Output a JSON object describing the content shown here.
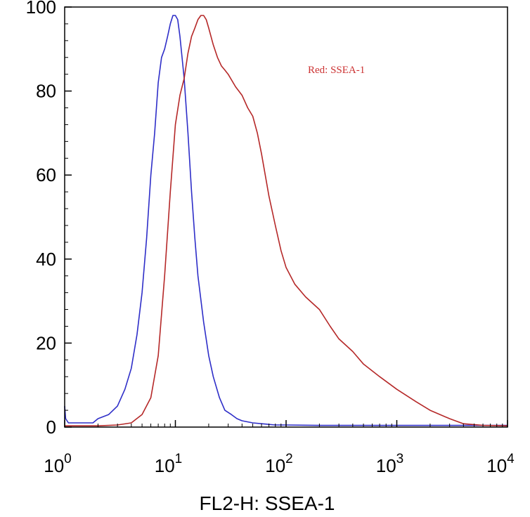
{
  "chart_data": {
    "type": "line",
    "xlabel": "FL2-H: SSEA-1",
    "ylabel": "",
    "xscale": "log",
    "xlim": [
      1,
      10000
    ],
    "ylim": [
      0,
      100
    ],
    "grid": false,
    "y_ticks": [
      {
        "value": 0,
        "label": "0"
      },
      {
        "value": 20,
        "label": "20"
      },
      {
        "value": 40,
        "label": "40"
      },
      {
        "value": 60,
        "label": "60"
      },
      {
        "value": 80,
        "label": "80"
      },
      {
        "value": 100,
        "label": "100"
      }
    ],
    "x_ticks": [
      {
        "value": 1,
        "base": "10",
        "exp": "0"
      },
      {
        "value": 10,
        "base": "10",
        "exp": "1"
      },
      {
        "value": 100,
        "base": "10",
        "exp": "2"
      },
      {
        "value": 1000,
        "base": "10",
        "exp": "3"
      },
      {
        "value": 10000,
        "base": "10",
        "exp": "4"
      }
    ],
    "annotation": {
      "text": "Red: SSEA-1",
      "color": "#cc3333"
    },
    "series": [
      {
        "color": "#2e2ec8",
        "x": [
          1.0,
          1.02,
          1.08,
          1.2,
          1.5,
          1.8,
          2.0,
          2.5,
          3.0,
          3.5,
          4.0,
          4.5,
          5.0,
          5.5,
          6.0,
          6.5,
          7.0,
          7.5,
          8.0,
          8.5,
          9.0,
          9.5,
          10.0,
          10.5,
          11.0,
          12.0,
          13.0,
          14.0,
          15.0,
          16.0,
          18.0,
          20.0,
          22.0,
          25.0,
          28.0,
          32.0,
          36.0,
          40.0,
          50.0,
          60.0,
          80.0,
          100.0,
          200.0,
          500.0,
          1000.0,
          3000.0,
          10000.0
        ],
        "y": [
          5,
          2,
          1,
          1,
          1,
          1,
          2,
          3,
          5,
          9,
          14,
          22,
          32,
          45,
          60,
          70,
          82,
          88,
          90,
          93,
          96,
          98,
          98,
          97,
          93,
          83,
          70,
          56,
          45,
          36,
          25,
          17,
          12,
          7,
          4,
          3,
          2,
          1.5,
          1,
          0.8,
          0.5,
          0.5,
          0.4,
          0.4,
          0.4,
          0.4,
          0.4
        ]
      },
      {
        "color": "#b52828",
        "x": [
          1.0,
          2.0,
          3.0,
          4.0,
          5.0,
          6.0,
          7.0,
          8.0,
          9.0,
          10.0,
          11.0,
          12.0,
          13.0,
          14.0,
          15.0,
          16.0,
          17.0,
          18.0,
          19.0,
          20.0,
          22.0,
          24.0,
          26.0,
          28.0,
          30.0,
          35.0,
          40.0,
          45.0,
          50.0,
          55.0,
          60.0,
          70.0,
          80.0,
          90.0,
          100.0,
          120.0,
          150.0,
          200.0,
          250.0,
          300.0,
          400.0,
          500.0,
          700.0,
          1000.0,
          1500.0,
          2000.0,
          3000.0,
          4000.0,
          6000.0,
          10000.0
        ],
        "y": [
          0.3,
          0.3,
          0.5,
          1,
          3,
          7,
          17,
          36,
          56,
          72,
          79,
          83,
          89,
          93,
          95,
          97,
          98,
          98,
          97,
          95,
          91,
          88,
          86,
          85,
          84,
          81,
          79,
          76,
          74,
          70,
          65,
          55,
          48,
          42,
          38,
          34,
          31,
          28,
          24,
          21,
          18,
          15,
          12,
          9,
          6,
          4,
          2,
          0.8,
          0.4,
          0.3
        ]
      }
    ]
  }
}
